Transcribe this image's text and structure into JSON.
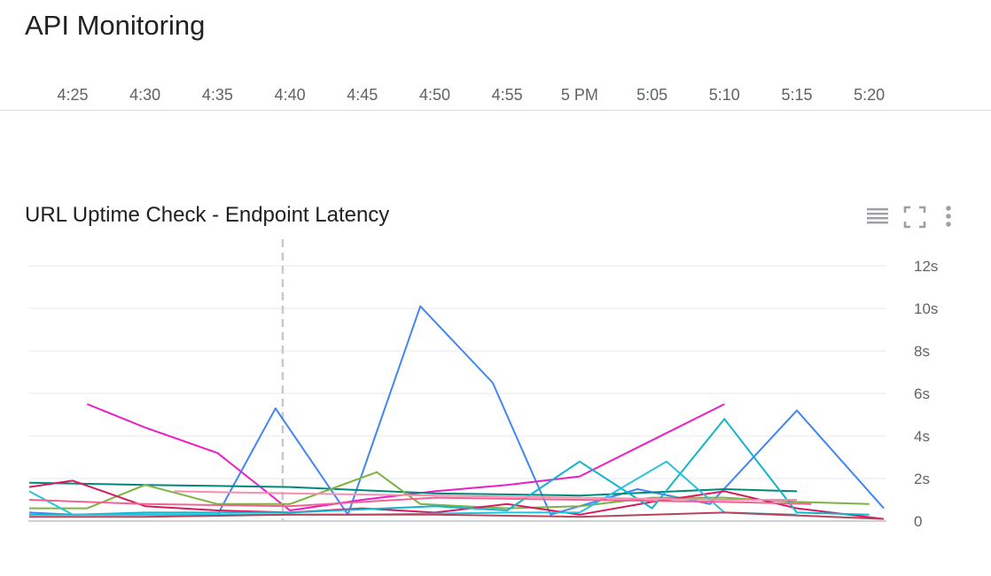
{
  "page": {
    "title": "API Monitoring"
  },
  "timeline": {
    "labels": [
      "4:25",
      "4:30",
      "4:35",
      "4:40",
      "4:45",
      "4:50",
      "4:55",
      "5 PM",
      "5:05",
      "5:10",
      "5:15",
      "5:20"
    ]
  },
  "card": {
    "title": "URL Uptime Check - Endpoint Latency",
    "icons": [
      "legend-list-icon",
      "fullscreen-icon",
      "more-vert-icon"
    ]
  },
  "colors": {
    "grid": "#e8eaed",
    "axis_text": "#5f6368",
    "cursor": "#c8c8c8"
  },
  "chart_data": {
    "type": "line",
    "x_unit": "minutes",
    "x_range": [
      "4:22",
      "5:22"
    ],
    "y_ticks": [
      "0",
      "2s",
      "4s",
      "6s",
      "8s",
      "10s",
      "12s"
    ],
    "ylim": [
      0,
      12
    ],
    "grid": true,
    "cursor_time": "4:39.5",
    "series": [
      {
        "color": "#4285f4",
        "x": [
          "4:22",
          "4:25",
          "4:30",
          "4:35",
          "4:39",
          "4:44",
          "4:49",
          "4:54",
          "4:58",
          "5:04",
          "5:09",
          "5:15",
          "5:21"
        ],
        "y": [
          0.4,
          0.3,
          0.3,
          0.3,
          5.3,
          0.3,
          10.1,
          6.5,
          0.3,
          1.5,
          0.8,
          5.2,
          0.6
        ]
      },
      {
        "color": "#e91ec7",
        "x": [
          "4:26",
          "4:30",
          "4:35",
          "4:40",
          "4:45",
          "4:50",
          "4:55",
          "5:00",
          "5:05",
          "5:10"
        ],
        "y": [
          5.5,
          4.4,
          3.2,
          0.5,
          1.0,
          1.4,
          1.7,
          2.1,
          3.8,
          5.5
        ]
      },
      {
        "color": "#00897b",
        "x": [
          "4:22",
          "4:30",
          "4:40",
          "4:50",
          "5:00",
          "5:10",
          "5:15"
        ],
        "y": [
          1.8,
          1.7,
          1.6,
          1.3,
          1.2,
          1.5,
          1.4
        ]
      },
      {
        "color": "#7cb342",
        "x": [
          "4:22",
          "4:26",
          "4:30",
          "4:35",
          "4:40",
          "4:46",
          "4:49",
          "4:55",
          "5:00",
          "5:05",
          "5:10",
          "5:15",
          "5:20"
        ],
        "y": [
          0.6,
          0.6,
          1.7,
          0.8,
          0.8,
          2.3,
          0.8,
          0.6,
          0.7,
          1.1,
          1.1,
          0.9,
          0.8
        ]
      },
      {
        "color": "#d81b60",
        "x": [
          "4:22",
          "4:25",
          "4:30",
          "4:35",
          "4:40",
          "4:45",
          "4:50",
          "4:55",
          "5:00",
          "5:05",
          "5:10",
          "5:15",
          "5:21"
        ],
        "y": [
          1.6,
          1.9,
          0.7,
          0.5,
          0.4,
          0.6,
          0.4,
          0.8,
          0.3,
          0.9,
          1.4,
          0.6,
          0.1
        ]
      },
      {
        "color": "#12b5cb",
        "x": [
          "4:22",
          "4:25",
          "4:30",
          "4:40",
          "4:50",
          "4:55",
          "5:00",
          "5:05",
          "5:10",
          "5:15",
          "5:20"
        ],
        "y": [
          0.3,
          0.3,
          0.4,
          0.4,
          0.7,
          0.5,
          2.8,
          0.6,
          4.8,
          0.4,
          0.3
        ]
      },
      {
        "color": "#24c1e0",
        "x": [
          "4:22",
          "4:25",
          "4:35",
          "4:45",
          "4:55",
          "5:00",
          "5:06",
          "5:10",
          "5:15"
        ],
        "y": [
          1.4,
          0.3,
          0.3,
          0.3,
          0.4,
          0.4,
          2.8,
          0.4,
          0.3
        ]
      },
      {
        "color": "#f06292",
        "x": [
          "4:22",
          "4:30",
          "4:40",
          "4:50",
          "5:00",
          "5:10",
          "5:16"
        ],
        "y": [
          1.0,
          0.8,
          0.7,
          1.1,
          1.0,
          0.9,
          0.8
        ]
      },
      {
        "color": "#b5445a",
        "x": [
          "4:22",
          "4:30",
          "4:40",
          "4:50",
          "5:00",
          "5:10",
          "5:21"
        ],
        "y": [
          0.2,
          0.2,
          0.3,
          0.3,
          0.2,
          0.4,
          0.1
        ]
      },
      {
        "color": "#f48fb1",
        "x": [
          "4:32",
          "4:40",
          "4:50",
          "5:00",
          "5:10",
          "5:15"
        ],
        "y": [
          1.4,
          1.3,
          1.2,
          1.1,
          1.0,
          1.0
        ]
      }
    ]
  }
}
